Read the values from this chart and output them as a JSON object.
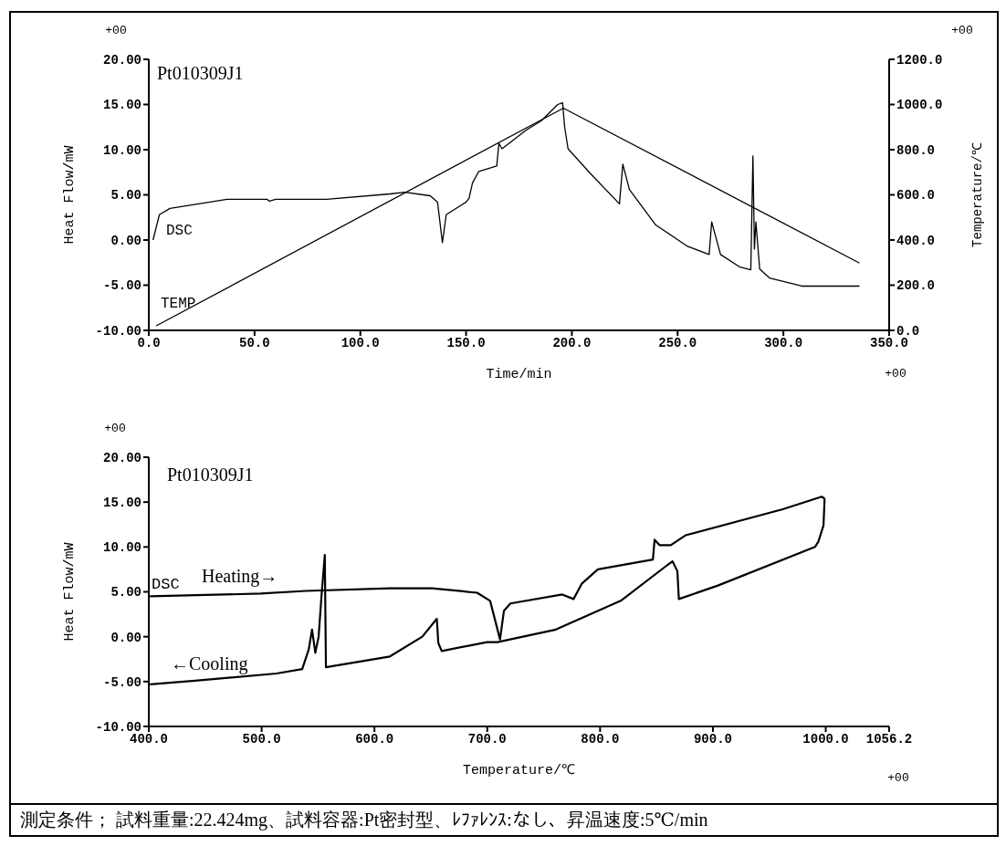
{
  "chart_data": [
    {
      "type": "line",
      "title": "Pt010309J1",
      "xlabel": "Time/min",
      "ylabel": "Heat Flow/mW",
      "y2label": "Temperature/℃",
      "xlim": [
        0,
        350
      ],
      "xticks": [
        {
          "value": 0,
          "label": "0.0"
        },
        {
          "value": 50,
          "label": "50.0"
        },
        {
          "value": 100,
          "label": "100.0"
        },
        {
          "value": 150,
          "label": "150.0"
        },
        {
          "value": 200,
          "label": "200.0"
        },
        {
          "value": 250,
          "label": "250.0"
        },
        {
          "value": 300,
          "label": "300.0"
        },
        {
          "value": 350,
          "label": "350.0"
        }
      ],
      "ylim": [
        -10,
        20
      ],
      "yticks": [
        {
          "value": -10,
          "label": "-10.00"
        },
        {
          "value": -5,
          "label": "-5.00"
        },
        {
          "value": 0,
          "label": "0.00"
        },
        {
          "value": 5,
          "label": "5.00"
        },
        {
          "value": 10,
          "label": "10.00"
        },
        {
          "value": 15,
          "label": "15.00"
        },
        {
          "value": 20,
          "label": "20.00"
        }
      ],
      "y2lim": [
        0,
        1200
      ],
      "y2ticks": [
        {
          "value": 0,
          "label": "0.0"
        },
        {
          "value": 200,
          "label": "200.0"
        },
        {
          "value": 400,
          "label": "400.0"
        },
        {
          "value": 600,
          "label": "600.0"
        },
        {
          "value": 800,
          "label": "800.0"
        },
        {
          "value": 1000,
          "label": "1000.0"
        },
        {
          "value": 1200,
          "label": "1200.0"
        }
      ],
      "series": [
        {
          "name": "DSC",
          "color": "#000000",
          "x": [
            2,
            5,
            10,
            37,
            56,
            57,
            60,
            84,
            114,
            121,
            133,
            136.5,
            138.8,
            140.6,
            150,
            151.4,
            153,
            156,
            164.5,
            165.5,
            167,
            178,
            185.6,
            193.3,
            195.6,
            196.6,
            198.2,
            208.6,
            222.5,
            224.1,
            227.2,
            239.5,
            254.7,
            264.9,
            266.1,
            270.3,
            279.5,
            284.6,
            285.6,
            286.3,
            287,
            288.8,
            293.4,
            308.7,
            336
          ],
          "values": [
            0,
            2.8,
            3.5,
            4.5,
            4.5,
            4.3,
            4.5,
            4.5,
            5.1,
            5.3,
            4.9,
            4.2,
            -0.3,
            2.8,
            4.2,
            4.6,
            6.3,
            7.6,
            8.2,
            10.7,
            10.1,
            12.1,
            13.2,
            15,
            15.2,
            12.5,
            10.1,
            7.4,
            4,
            8.4,
            5.6,
            1.7,
            -0.7,
            -1.6,
            2,
            -1.6,
            -3,
            -3.3,
            9.3,
            -1,
            2,
            -3.2,
            -4.2,
            -5.1,
            -5.1
          ]
        },
        {
          "name": "TEMP",
          "color": "#000000",
          "axis": "y2",
          "x": [
            3.5,
            196,
            336
          ],
          "values": [
            20,
            984,
            298
          ]
        }
      ],
      "annotations": [
        "+00",
        "+00",
        "+00"
      ]
    },
    {
      "type": "line",
      "title": "Pt010309J1",
      "xlabel": "Temperature/℃",
      "ylabel": "Heat Flow/mW",
      "xlim": [
        400,
        1056.2
      ],
      "xticks": [
        {
          "value": 400,
          "label": "400.0"
        },
        {
          "value": 500,
          "label": "500.0"
        },
        {
          "value": 600,
          "label": "600.0"
        },
        {
          "value": 700,
          "label": "700.0"
        },
        {
          "value": 800,
          "label": "800.0"
        },
        {
          "value": 900,
          "label": "900.0"
        },
        {
          "value": 1000,
          "label": "1000.0"
        },
        1056.2
      ],
      "ylim": [
        -10,
        20
      ],
      "yticks": [
        {
          "value": -10,
          "label": "-10.00"
        },
        {
          "value": -5,
          "label": "-5.00"
        },
        {
          "value": 0,
          "label": "0.00"
        },
        {
          "value": 5,
          "label": "5.00"
        },
        {
          "value": 10,
          "label": "10.00"
        },
        {
          "value": 15,
          "label": "15.00"
        },
        {
          "value": 20,
          "label": "20.00"
        }
      ],
      "series": [
        {
          "name": "Heating→",
          "color": "#000000",
          "x": [
            401,
            499,
            539,
            614,
            651,
            691,
            702.5,
            711.3,
            714.8,
            720.5,
            766.5,
            776.5,
            783.7,
            798,
            846.8,
            848.3,
            852.7,
            862.6,
            875.7,
            961.9,
            996.4,
            999
          ],
          "values": [
            4.5,
            4.8,
            5.1,
            5.4,
            5.4,
            4.9,
            4,
            -0.3,
            2.9,
            3.7,
            4.7,
            4.2,
            5.9,
            7.5,
            8.6,
            10.8,
            10.2,
            10.2,
            11.3,
            14.2,
            15.6,
            15.4
          ]
        },
        {
          "name": "←Cooling",
          "color": "#000000",
          "x": [
            999,
            998,
            993.5,
            990.5,
            904.4,
            869.8,
            868.5,
            864.2,
            859.8,
            818.3,
            760.8,
            709,
            699.8,
            659.6,
            656.6,
            655.3,
            642.4,
            613.7,
            557,
            556,
            553,
            550.5,
            547.6,
            544.7,
            541.8,
            536,
            513.1,
            441,
            401
          ],
          "values": [
            15.4,
            12.4,
            10.6,
            10,
            5.7,
            4.2,
            7.3,
            8.4,
            8,
            4,
            0.8,
            -0.6,
            -0.6,
            -1.6,
            -0.7,
            2,
            0,
            -2.2,
            -3.4,
            9.1,
            4.4,
            0,
            -1.8,
            0.8,
            -1.4,
            -3.6,
            -4.1,
            -4.9,
            -5.3
          ]
        }
      ],
      "annotations": [
        "+00",
        "DSC",
        "+00",
        "測定条件； 試料重量:22.424mg、試料容器:Pt密封型、ﾚﾌｧﾚﾝｽ:なし、昇温速度:5℃/min"
      ]
    }
  ]
}
